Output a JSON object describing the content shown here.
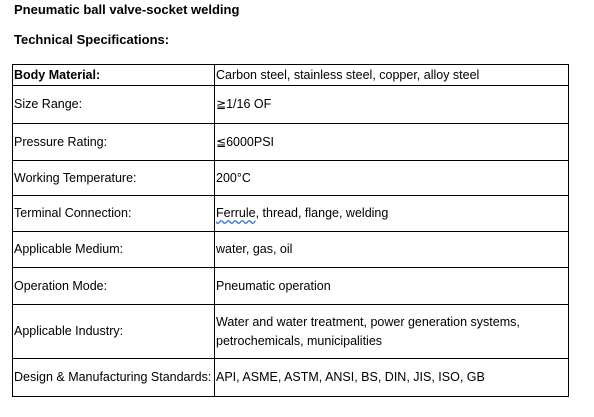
{
  "title": "Pneumatic ball valve-socket welding",
  "section_heading": "Technical Specifications:",
  "rows": [
    {
      "label": "Body Material:",
      "value": "Carbon steel, stainless steel, copper, alloy steel"
    },
    {
      "label": "Size Range:",
      "value_symbol": "≧",
      "value": "1/16 OF"
    },
    {
      "label": "Pressure Rating:",
      "value_symbol": "≦",
      "value": "6000PSI"
    },
    {
      "label": "Working Temperature:",
      "value": "200°C"
    },
    {
      "label": "Terminal Connection:",
      "value_underlined": "Ferrule",
      "value": ", thread, flange, welding"
    },
    {
      "label": "Applicable Medium:",
      "value": "water, gas, oil"
    },
    {
      "label": "Operation Mode:",
      "value": "Pneumatic operation"
    },
    {
      "label": "Applicable Industry:",
      "value": "Water and water treatment, power generation systems, petrochemicals, municipalities"
    },
    {
      "label": "Design & Manufacturing Standards:",
      "value": "API, ASME, ASTM, ANSI, BS, DIN, JIS, ISO, GB"
    }
  ]
}
